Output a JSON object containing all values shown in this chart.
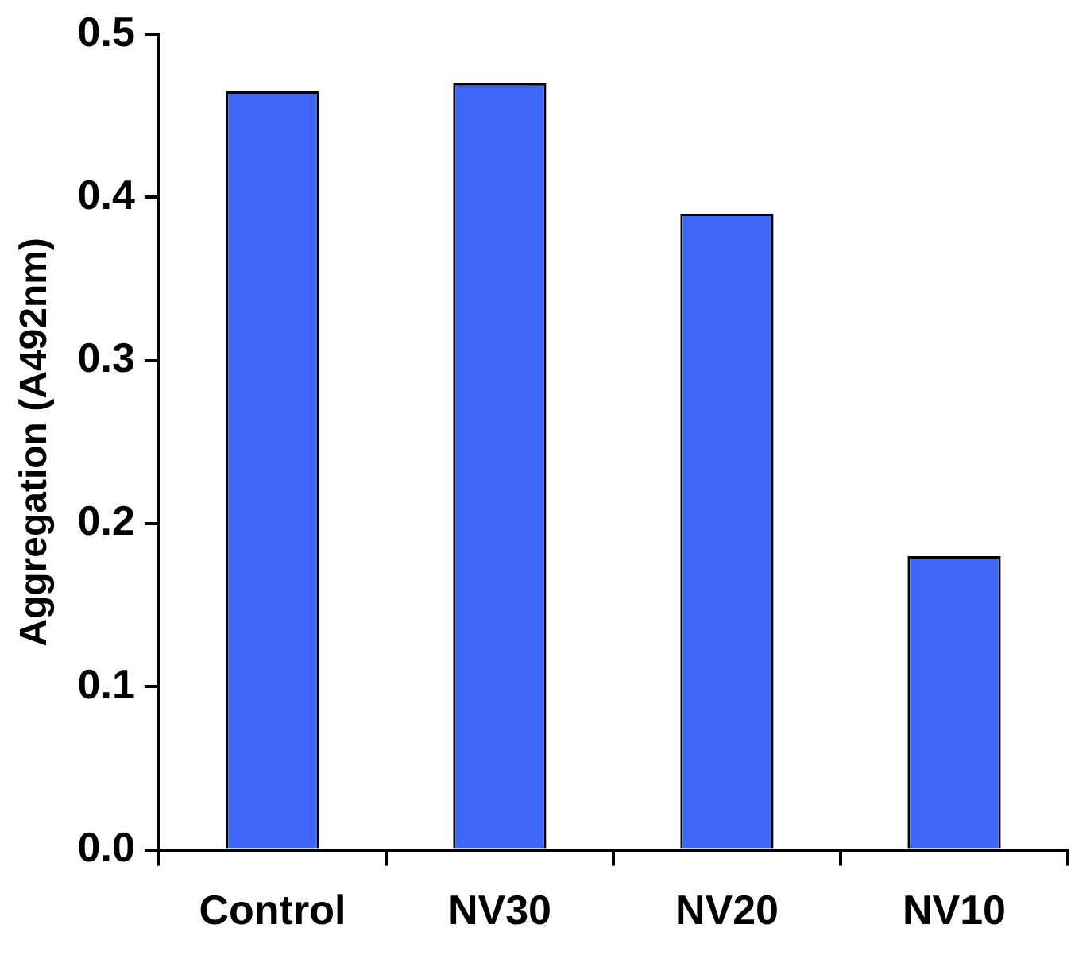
{
  "chart_data": {
    "type": "bar",
    "ylabel": "Aggregation (A492nm)",
    "categories": [
      "Control",
      "NV30",
      "NV20",
      "NV10"
    ],
    "values": [
      0.465,
      0.47,
      0.39,
      0.18
    ],
    "color": "#3d66f5",
    "ylim": [
      0,
      0.5
    ],
    "yticks": [
      {
        "value": 0,
        "label": "0.0"
      },
      {
        "value": 0.1,
        "label": "0.1"
      },
      {
        "value": 0.2,
        "label": "0.2"
      },
      {
        "value": 0.3,
        "label": "0.3"
      },
      {
        "value": 0.4,
        "label": "0.4"
      },
      {
        "value": 0.5,
        "label": "0.5"
      }
    ],
    "grid": false,
    "legend": false
  }
}
